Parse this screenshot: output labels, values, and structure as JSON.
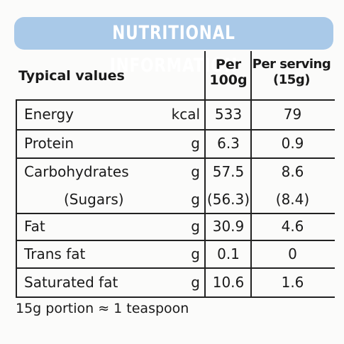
{
  "header": {
    "title": "NUTRITIONAL INFORMATION"
  },
  "table": {
    "columns": {
      "label": "Typical values",
      "per_100g": "Per 100g",
      "per_serving": "Per serving (15g)"
    },
    "rows": [
      {
        "name": "Energy",
        "unit": "kcal",
        "per_100g": "533",
        "per_serving": "79"
      },
      {
        "name": "Protein",
        "unit": "g",
        "per_100g": "6.3",
        "per_serving": "0.9"
      },
      {
        "name": "Carbohydrates",
        "unit": "g",
        "per_100g": "57.5",
        "per_serving": "8.6"
      },
      {
        "name": "(Sugars)",
        "unit": "g",
        "per_100g": "(56.3)",
        "per_serving": "(8.4)"
      },
      {
        "name": "Fat",
        "unit": "g",
        "per_100g": "30.9",
        "per_serving": "4.6"
      },
      {
        "name": "Trans fat",
        "unit": "g",
        "per_100g": "0.1",
        "per_serving": "0"
      },
      {
        "name": "Saturated fat",
        "unit": "g",
        "per_100g": "10.6",
        "per_serving": "1.6"
      }
    ]
  },
  "footer": {
    "note": "15g portion ≈ 1 teaspoon"
  }
}
